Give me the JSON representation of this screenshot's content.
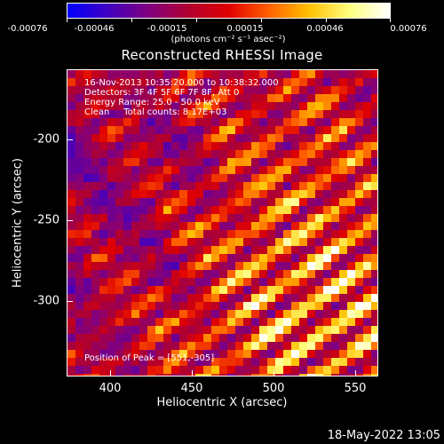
{
  "colorbar": {
    "ticks": [
      "-0.00076",
      "-0.00046",
      "-0.00015",
      "0.00015",
      "0.00046",
      "0.00076"
    ],
    "units": "(photons cm⁻² s⁻¹ asec⁻²)",
    "colormap": [
      "#0000ff",
      "#4000c0",
      "#800080",
      "#b00030",
      "#e00000",
      "#ff6000",
      "#ffc000",
      "#ffff80",
      "#ffffff"
    ]
  },
  "title": "Reconstructed RHESSI Image",
  "info": {
    "line1": "16-Nov-2013 10:35:20.000 to 10:38:32.000",
    "line2": "Detectors: 3F 4F 5F 6F 7F 8F, Att 0",
    "line3": "Energy Range: 25.0 - 50.0 keV",
    "line4": "Clean     Total counts: 8.17E+03",
    "peak": "Position of Peak = [551,-305]"
  },
  "axes": {
    "xlabel": "Heliocentric X (arcsec)",
    "ylabel": "Heliocentric Y (arcsec)",
    "xticks": [
      "400",
      "450",
      "500",
      "550"
    ],
    "yticks": [
      "-200",
      "-250",
      "-300"
    ]
  },
  "footer": "18-May-2022 13:05",
  "chart_data": {
    "type": "heatmap",
    "title": "Reconstructed RHESSI Image",
    "xlabel": "Heliocentric X (arcsec)",
    "ylabel": "Heliocentric Y (arcsec)",
    "xlim": [
      372,
      567
    ],
    "ylim": [
      -350,
      -160
    ],
    "zlim": [
      -0.00076,
      0.00076
    ],
    "peak": [
      551,
      -305
    ]
  }
}
